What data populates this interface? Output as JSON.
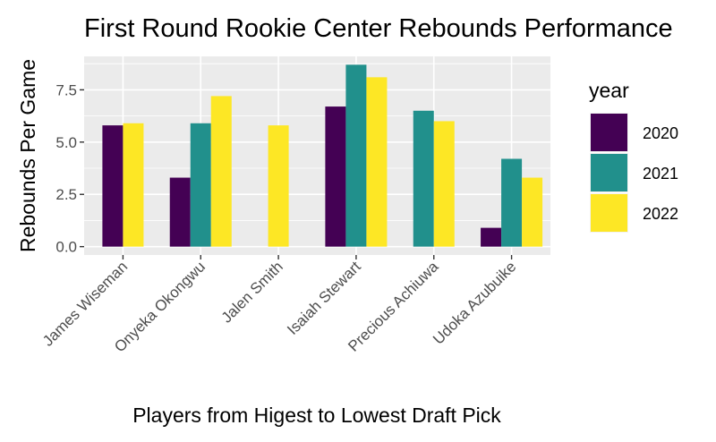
{
  "chart_data": {
    "type": "bar",
    "title": "First Round Rookie Center Rebounds Performance",
    "xlabel": "Players from Higest to Lowest Draft Pick",
    "ylabel": "Rebounds Per Game",
    "categories": [
      "James Wiseman",
      "Onyeka Okongwu",
      "Jalen Smith",
      "Isaiah Stewart",
      "Precious Achiuwa",
      "Udoka Azubuike"
    ],
    "ylim": [
      -0.4,
      9.1
    ],
    "yticks": [
      0.0,
      2.5,
      5.0,
      7.5
    ],
    "ytick_labels": [
      "0.0",
      "2.5",
      "5.0",
      "7.5"
    ],
    "grid": true,
    "legend": {
      "title": "year",
      "position": "right"
    },
    "series": [
      {
        "name": "2020",
        "color": "#440154",
        "values": [
          5.8,
          3.3,
          null,
          6.7,
          null,
          0.9
        ]
      },
      {
        "name": "2021",
        "color": "#21908C",
        "values": [
          null,
          5.9,
          null,
          8.7,
          6.5,
          4.2
        ]
      },
      {
        "name": "2022",
        "color": "#FDE725",
        "values": [
          5.9,
          7.2,
          5.8,
          8.1,
          6.0,
          3.3
        ]
      }
    ]
  }
}
